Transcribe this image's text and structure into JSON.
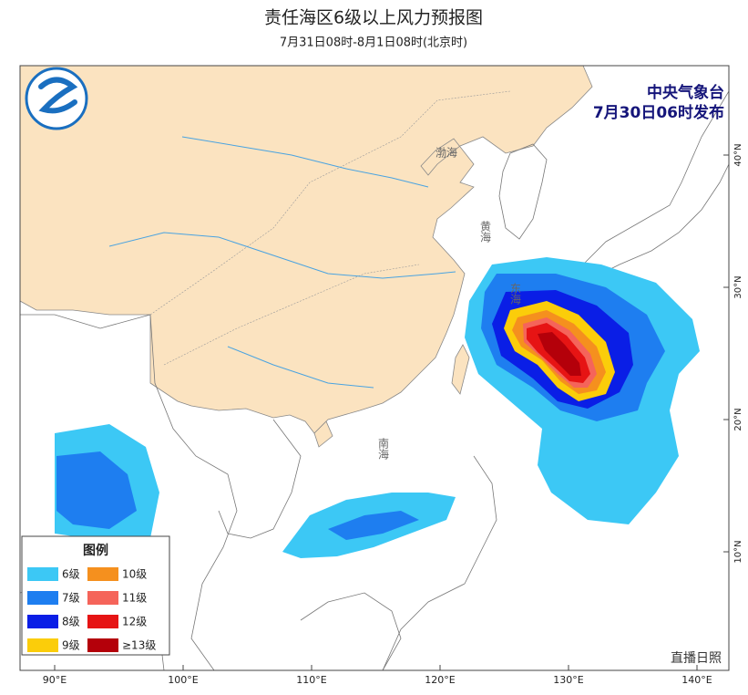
{
  "header": {
    "title": "责任海区6级以上风力预报图",
    "subtitle": "7月31日08时-8月1日08时(北京时)"
  },
  "issuer": {
    "agency": "中央气象台",
    "issued": "7月30日06时发布"
  },
  "map": {
    "sea_names": [
      "渤海",
      "黄海",
      "东海",
      "南海"
    ],
    "longitude_labels": [
      "90°E",
      "100°E",
      "110°E",
      "120°E",
      "130°E",
      "140°E"
    ],
    "latitude_labels": [
      "40°N",
      "30°N",
      "20°N",
      "10°N"
    ]
  },
  "legend": {
    "title": "图例",
    "items": [
      {
        "label": "6级",
        "color": "#3cc8f5"
      },
      {
        "label": "7级",
        "color": "#1e7ef0"
      },
      {
        "label": "8级",
        "color": "#0a1ee6"
      },
      {
        "label": "9级",
        "color": "#fbcd0a"
      },
      {
        "label": "10级",
        "color": "#f5901e"
      },
      {
        "label": "11级",
        "color": "#f5645a"
      },
      {
        "label": "12级",
        "color": "#e61414"
      },
      {
        "label": "≥13级",
        "color": "#b4000a"
      }
    ]
  },
  "watermark": "直播日照"
}
